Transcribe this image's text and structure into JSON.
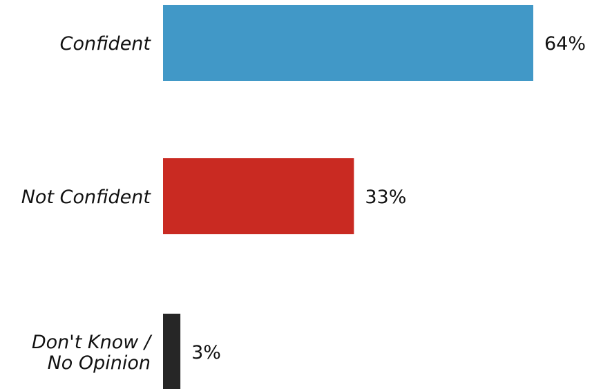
{
  "chart_data": {
    "type": "bar",
    "orientation": "horizontal",
    "categories": [
      "Confident",
      "Not Confident",
      "Don't Know / No Opinion"
    ],
    "category_lines": [
      [
        "Confident"
      ],
      [
        "Not Confident"
      ],
      [
        "Don't Know /",
        "No Opinion"
      ]
    ],
    "values": [
      64,
      33,
      3
    ],
    "value_labels": [
      "64%",
      "33%",
      "3%"
    ],
    "colors": [
      "#4198c7",
      "#c92a22",
      "#262626"
    ],
    "xlim": [
      0,
      100
    ],
    "title": "",
    "xlabel": "",
    "ylabel": "",
    "grid": false,
    "legend": "none"
  }
}
